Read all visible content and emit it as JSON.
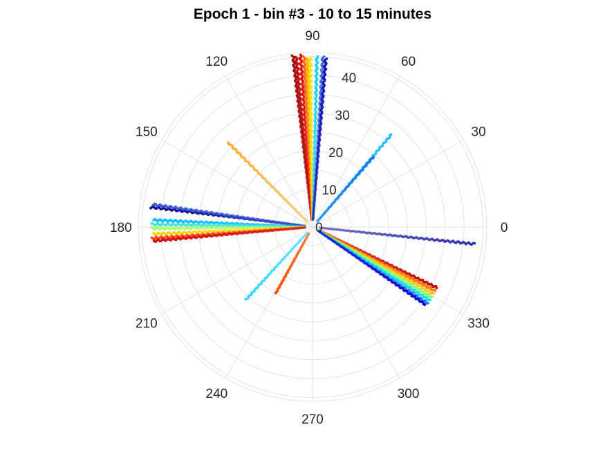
{
  "chart_data": {
    "type": "scatter",
    "coordinate_system": "polar",
    "title": "Epoch 1 - bin #3 - 10 to 15 minutes",
    "angle_unit": "degrees",
    "angle_zero": "east",
    "angle_direction": "counterclockwise",
    "angle_ticks": [
      0,
      30,
      60,
      90,
      120,
      150,
      180,
      210,
      240,
      270,
      300,
      330
    ],
    "angle_tick_labels": [
      "0",
      "30",
      "60",
      "90",
      "120",
      "150",
      "180",
      "210",
      "240",
      "270",
      "300",
      "330"
    ],
    "radial_ticks": [
      0,
      10,
      20,
      30,
      40
    ],
    "radial_tick_labels": [
      "0",
      "10",
      "20",
      "30",
      "40"
    ],
    "radial_label_angle": 80,
    "rlim": [
      0,
      46
    ],
    "grid": true,
    "legend": "none",
    "colormap": "jet",
    "series": [
      {
        "angle": 96.5,
        "r_min": 2,
        "r_max": 45.5,
        "color": "#990000",
        "points": 120
      },
      {
        "angle": 95.5,
        "r_min": 2,
        "r_max": 45.0,
        "color": "#c00000",
        "points": 120
      },
      {
        "angle": 94.0,
        "r_min": 2,
        "r_max": 45.5,
        "color": "#e00000",
        "points": 120
      },
      {
        "angle": 92.8,
        "r_min": 2,
        "r_max": 45.0,
        "color": "#ff6000",
        "points": 110
      },
      {
        "angle": 91.8,
        "r_min": 2,
        "r_max": 44.5,
        "color": "#ffb000",
        "points": 110
      },
      {
        "angle": 90.8,
        "r_min": 2,
        "r_max": 44.5,
        "color": "#ffe000",
        "points": 110
      },
      {
        "angle": 88.5,
        "r_min": 2,
        "r_max": 45.0,
        "color": "#00d0ff",
        "points": 110
      },
      {
        "angle": 86.5,
        "r_min": 2,
        "r_max": 45.0,
        "color": "#3a62d6",
        "points": 110
      },
      {
        "angle": 85.5,
        "r_min": 2,
        "r_max": 44.5,
        "color": "#0000b0",
        "points": 110
      },
      {
        "angle": 49.5,
        "r_min": 2,
        "r_max": 32.0,
        "color": "#20b8ff",
        "points": 80
      },
      {
        "angle": 49.0,
        "r_min": 2,
        "r_max": 24.5,
        "color": "#0a78e8",
        "points": 60
      },
      {
        "angle": 135.0,
        "r_min": 2,
        "r_max": 31.5,
        "color": "#ffaa2a",
        "points": 70
      },
      {
        "angle": 173.0,
        "r_min": 2,
        "r_max": 43.0,
        "color": "#00008b",
        "points": 110
      },
      {
        "angle": 172.0,
        "r_min": 2,
        "r_max": 42.5,
        "color": "#3050d8",
        "points": 110
      },
      {
        "angle": 177.5,
        "r_min": 2,
        "r_max": 42.0,
        "color": "#00b8ff",
        "points": 110
      },
      {
        "angle": 179.0,
        "r_min": 2,
        "r_max": 42.5,
        "color": "#40e0d0",
        "points": 110
      },
      {
        "angle": 180.5,
        "r_min": 2,
        "r_max": 42.5,
        "color": "#a0ff60",
        "points": 110
      },
      {
        "angle": 182.5,
        "r_min": 2,
        "r_max": 42.0,
        "color": "#ffd000",
        "points": 110
      },
      {
        "angle": 184.0,
        "r_min": 2,
        "r_max": 42.5,
        "color": "#ff4000",
        "points": 110
      },
      {
        "angle": 185.0,
        "r_min": 2,
        "r_max": 42.0,
        "color": "#d00000",
        "points": 110
      },
      {
        "angle": 354.0,
        "r_min": 2,
        "r_max": 43.0,
        "color": "#2a2aa8",
        "points": 110
      },
      {
        "angle": 334.0,
        "r_min": 2,
        "r_max": 36.5,
        "color": "#c00000",
        "points": 100
      },
      {
        "angle": 332.5,
        "r_min": 2,
        "r_max": 36.5,
        "color": "#ff7000",
        "points": 100
      },
      {
        "angle": 331.0,
        "r_min": 2,
        "r_max": 36.5,
        "color": "#ffc800",
        "points": 100
      },
      {
        "angle": 329.5,
        "r_min": 2,
        "r_max": 36.5,
        "color": "#80ff80",
        "points": 100
      },
      {
        "angle": 328.0,
        "r_min": 2,
        "r_max": 36.5,
        "color": "#00e0e0",
        "points": 100
      },
      {
        "angle": 326.5,
        "r_min": 2,
        "r_max": 36.5,
        "color": "#2070ff",
        "points": 100
      },
      {
        "angle": 325.5,
        "r_min": 2,
        "r_max": 36.0,
        "color": "#0000d0",
        "points": 100
      },
      {
        "angle": 227.5,
        "r_min": 2,
        "r_max": 26.0,
        "color": "#30d8ff",
        "points": 70
      },
      {
        "angle": 241.0,
        "r_min": 2,
        "r_max": 20.0,
        "color": "#ff5000",
        "points": 60
      }
    ]
  }
}
